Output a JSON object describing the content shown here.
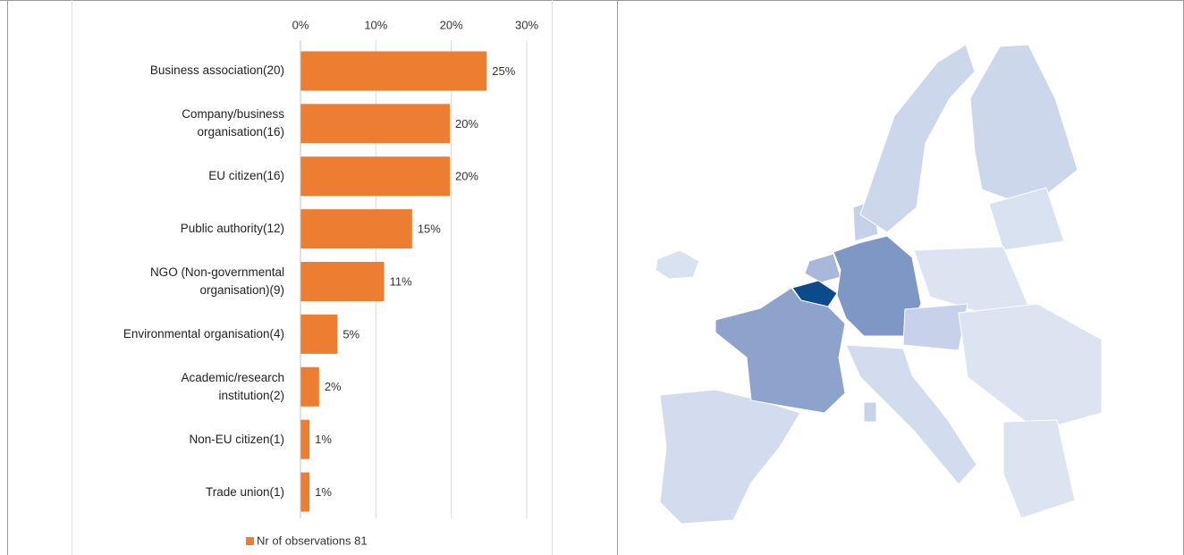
{
  "chart_data": {
    "type": "bar",
    "orientation": "horizontal",
    "categories": [
      "Business association(20)",
      "Company/business organisation(16)",
      "EU citizen(16)",
      "Public authority(12)",
      "NGO (Non-governmental organisation)(9)",
      "Environmental organisation(4)",
      "Academic/research institution(2)",
      "Non-EU citizen(1)",
      "Trade union(1)"
    ],
    "series": [
      {
        "name": "Nr of observations 81",
        "color": "#ed7d31",
        "values": [
          24.7,
          19.8,
          19.8,
          14.8,
          11.1,
          4.9,
          2.47,
          1.2,
          1.2
        ],
        "value_labels": [
          "25%",
          "20%",
          "20%",
          "15%",
          "11%",
          "5%",
          "2%",
          "1%",
          "1%"
        ]
      }
    ],
    "xlim": [
      0,
      30
    ],
    "xticks": [
      {
        "value": 0,
        "label": "0%"
      },
      {
        "value": 10,
        "label": "10%"
      },
      {
        "value": 20,
        "label": "20%"
      },
      {
        "value": 30,
        "label": "30%"
      }
    ],
    "grid": true,
    "legend": "bottom"
  }
}
